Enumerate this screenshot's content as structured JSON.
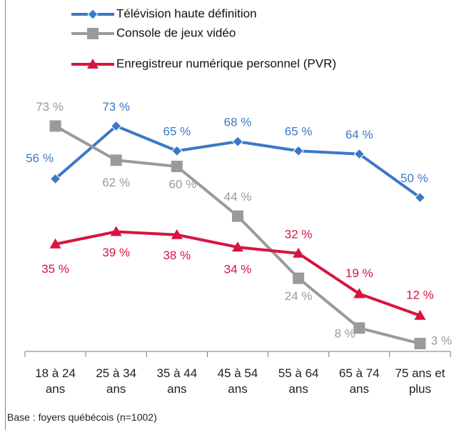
{
  "chart_data": {
    "type": "line",
    "categories": [
      "18 à 24 ans",
      "25 à 34 ans",
      "35 à 44 ans",
      "45 à 54 ans",
      "55 à 64 ans",
      "65 à 74 ans",
      "75 ans et plus"
    ],
    "series": [
      {
        "name": "Télévision haute définition",
        "color": "#3b78c6",
        "marker": "diamond",
        "values": [
          56,
          73,
          65,
          68,
          65,
          64,
          50
        ],
        "value_labels": [
          "56 %",
          "73 %",
          "65 %",
          "68 %",
          "65 %",
          "64 %",
          "50 %"
        ]
      },
      {
        "name": "Console de jeux vidéo",
        "color": "#9a9a9a",
        "marker": "square",
        "values": [
          73,
          62,
          60,
          44,
          24,
          8,
          3
        ],
        "value_labels": [
          "73 %",
          "62 %",
          "60 %",
          "44 %",
          "24 %",
          "8 %",
          "3 %"
        ]
      },
      {
        "name": "Enregistreur numérique personnel (PVR)",
        "color": "#d7143f",
        "marker": "triangle",
        "values": [
          35,
          39,
          38,
          34,
          32,
          19,
          12
        ],
        "value_labels": [
          "35 %",
          "39 %",
          "38 %",
          "34 %",
          "32 %",
          "19 %",
          "12 %"
        ]
      }
    ],
    "ylim": [
      0,
      100
    ],
    "note": "Base : foyers québécois (n=1002)"
  }
}
